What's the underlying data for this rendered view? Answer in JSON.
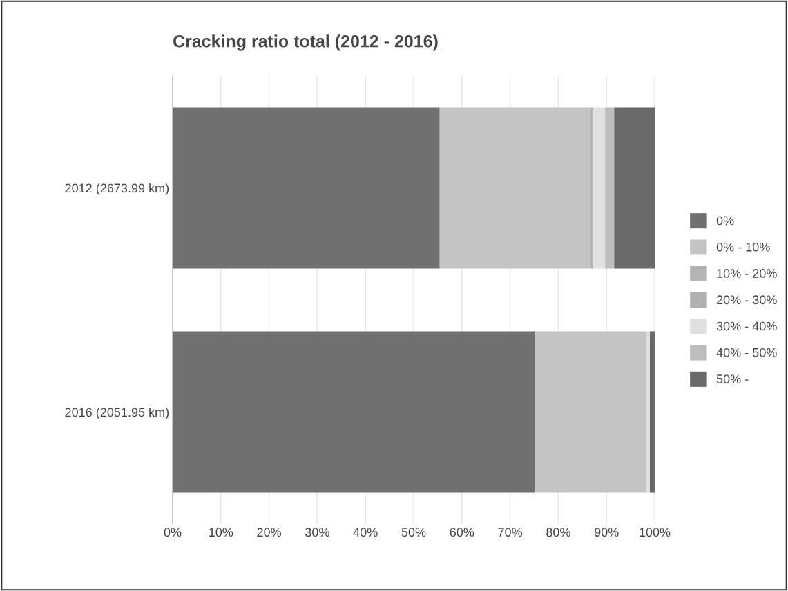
{
  "chart_data": {
    "type": "bar",
    "orientation": "horizontal",
    "stacked": true,
    "title": "Cracking ratio total (2012 - 2016)",
    "categories": [
      "2012 (2673.99 km)",
      "2016 (2051.95 km)"
    ],
    "series": [
      {
        "name": "0%",
        "color": "#707070",
        "values": [
          55.4,
          75.1
        ]
      },
      {
        "name": "0% - 10%",
        "color": "#c4c4c4",
        "values": [
          31.2,
          23.2
        ]
      },
      {
        "name": "10% - 20%",
        "color": "#b4b4b4",
        "values": [
          0.7,
          0
        ]
      },
      {
        "name": "20% - 30%",
        "color": "#b0b0b0",
        "values": [
          0,
          0
        ]
      },
      {
        "name": "30% - 40%",
        "color": "#e0e0e0",
        "values": [
          2.4,
          0.7
        ]
      },
      {
        "name": "40% - 50%",
        "color": "#bdbdbd",
        "values": [
          1.9,
          0
        ]
      },
      {
        "name": "50% -",
        "color": "#6a6a6a",
        "values": [
          8.4,
          1.0
        ]
      }
    ],
    "xlim": [
      0,
      100
    ],
    "xticks": [
      {
        "value": 0,
        "label": "0%"
      },
      {
        "value": 10,
        "label": "10%"
      },
      {
        "value": 20,
        "label": "20%"
      },
      {
        "value": 30,
        "label": "30%"
      },
      {
        "value": 40,
        "label": "40%"
      },
      {
        "value": 50,
        "label": "50%"
      },
      {
        "value": 60,
        "label": "60%"
      },
      {
        "value": 70,
        "label": "70%"
      },
      {
        "value": 80,
        "label": "80%"
      },
      {
        "value": 90,
        "label": "90%"
      },
      {
        "value": 100,
        "label": "100%"
      }
    ],
    "grid": "x",
    "legend": "right"
  }
}
